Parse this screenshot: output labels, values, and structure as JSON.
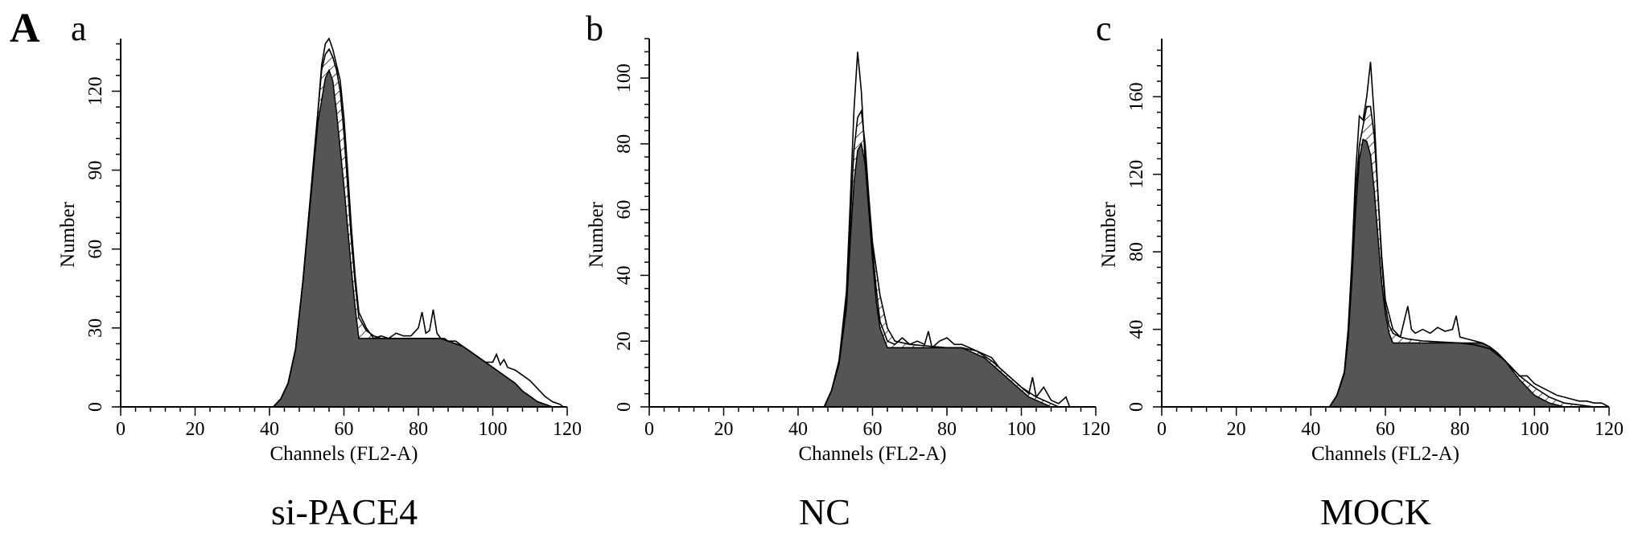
{
  "figure_label": "A",
  "chart_data": [
    {
      "type": "area",
      "panel_letter": "a",
      "caption": "si-PACE4",
      "xlabel": "Channels (FL2-A)",
      "ylabel": "Number",
      "xlim": [
        0,
        120
      ],
      "ylim": [
        0,
        140
      ],
      "xticks": [
        "0",
        "20",
        "40",
        "60",
        "80",
        "100",
        "120"
      ],
      "yticks": [
        0,
        30,
        60,
        90,
        120
      ],
      "ytick_labels": [
        "0",
        "30",
        "60",
        "90",
        "120"
      ],
      "series": [
        {
          "x": [
            41,
            43,
            45,
            47,
            49,
            51,
            53,
            54,
            55,
            56,
            57,
            58,
            59,
            60,
            61,
            62,
            63,
            64,
            66,
            68,
            70,
            72,
            74,
            76,
            78,
            80,
            81,
            82,
            83,
            84,
            85,
            86,
            87,
            88,
            90,
            92,
            94,
            96,
            98,
            100,
            101,
            102,
            103,
            104,
            106,
            108,
            110,
            112,
            114,
            116,
            118,
            119
          ],
          "values": [
            0,
            3,
            9,
            22,
            48,
            80,
            112,
            130,
            138,
            140,
            136,
            130,
            124,
            110,
            90,
            68,
            50,
            36,
            30,
            26,
            27,
            26,
            28,
            27,
            27,
            30,
            36,
            28,
            29,
            37,
            28,
            26,
            26,
            25,
            25,
            23,
            21,
            19,
            17,
            17,
            20,
            16,
            18,
            15,
            14,
            12,
            10,
            7,
            4,
            2,
            1,
            0
          ]
        },
        {
          "x": [
            41,
            43,
            45,
            47,
            49,
            51,
            53,
            54,
            55,
            56,
            57,
            58,
            59,
            60,
            61,
            62,
            63,
            64,
            66,
            68,
            70,
            72,
            74,
            76,
            78,
            80,
            82,
            84,
            86,
            88,
            90,
            92,
            94,
            96,
            98,
            100,
            102,
            104,
            106,
            108,
            110,
            112,
            114,
            116,
            118
          ],
          "values": [
            0,
            3,
            9,
            22,
            48,
            80,
            112,
            128,
            134,
            136,
            133,
            128,
            120,
            104,
            84,
            63,
            47,
            34,
            29,
            27,
            26,
            26,
            26,
            26,
            26,
            26,
            26,
            26,
            26,
            25,
            24,
            23,
            21,
            19,
            17,
            15,
            13,
            11,
            9,
            6,
            4,
            2,
            1,
            0,
            0
          ]
        },
        {
          "x": [
            41,
            43,
            45,
            47,
            49,
            51,
            53,
            55,
            56,
            57,
            58,
            60,
            62,
            63,
            64,
            86,
            88,
            90,
            92,
            94,
            96,
            98,
            100,
            102,
            104,
            106,
            108,
            110,
            112,
            114,
            116,
            118
          ],
          "values": [
            0,
            3,
            9,
            22,
            48,
            78,
            108,
            125,
            128,
            124,
            112,
            84,
            52,
            38,
            26,
            26,
            25,
            24,
            23,
            21,
            19,
            17,
            15,
            13,
            11,
            9,
            6,
            4,
            2,
            1,
            0,
            0
          ]
        }
      ]
    },
    {
      "type": "area",
      "panel_letter": "b",
      "caption": "NC",
      "xlabel": "Channels (FL2-A)",
      "ylabel": "Number",
      "xlim": [
        0,
        120
      ],
      "ylim": [
        0,
        112
      ],
      "xticks": [
        "0",
        "20",
        "40",
        "60",
        "80",
        "100",
        "120"
      ],
      "yticks": [
        0,
        20,
        40,
        60,
        80,
        100
      ],
      "ytick_labels": [
        "0",
        "20",
        "40",
        "60",
        "80",
        "100"
      ],
      "series": [
        {
          "x": [
            47,
            49,
            51,
            53,
            54,
            55,
            56,
            57,
            58,
            59,
            60,
            61,
            62,
            64,
            66,
            68,
            70,
            72,
            74,
            75,
            76,
            78,
            80,
            82,
            84,
            86,
            88,
            90,
            92,
            94,
            96,
            98,
            100,
            102,
            103,
            104,
            106,
            108,
            110,
            112,
            113
          ],
          "values": [
            0,
            5,
            14,
            35,
            62,
            90,
            108,
            96,
            75,
            60,
            48,
            36,
            26,
            20,
            19,
            21,
            19,
            20,
            19,
            23,
            18,
            20,
            21,
            19,
            19,
            18,
            17,
            16,
            15,
            12,
            10,
            8,
            6,
            4,
            9,
            3,
            6,
            2,
            1,
            3,
            0
          ]
        },
        {
          "x": [
            47,
            49,
            51,
            53,
            54,
            55,
            56,
            57,
            58,
            59,
            60,
            62,
            64,
            66,
            70,
            80,
            84,
            88,
            92,
            96,
            100,
            104,
            108,
            110
          ],
          "values": [
            0,
            5,
            14,
            32,
            56,
            78,
            88,
            90,
            80,
            64,
            50,
            34,
            24,
            20,
            19,
            18,
            18,
            17,
            14,
            10,
            6,
            3,
            1,
            0
          ]
        },
        {
          "x": [
            47,
            49,
            51,
            53,
            54,
            55,
            56,
            57,
            58,
            59,
            60,
            61,
            62,
            64,
            84,
            86,
            88,
            90,
            92,
            94,
            96,
            98,
            100,
            102,
            104,
            106,
            108
          ],
          "values": [
            0,
            5,
            13,
            30,
            50,
            68,
            78,
            80,
            74,
            60,
            45,
            32,
            24,
            18,
            18,
            17,
            16,
            15,
            13,
            11,
            9,
            7,
            5,
            3,
            2,
            1,
            0
          ]
        }
      ]
    },
    {
      "type": "area",
      "panel_letter": "c",
      "caption": "MOCK",
      "xlabel": "Channels (FL2-A)",
      "ylabel": "Number",
      "xlim": [
        0,
        120
      ],
      "ylim": [
        0,
        190
      ],
      "xticks": [
        "0",
        "20",
        "40",
        "60",
        "80",
        "100",
        "120"
      ],
      "yticks": [
        0,
        40,
        80,
        120,
        160
      ],
      "ytick_labels": [
        "0",
        "40",
        "80",
        "120",
        "160"
      ],
      "series": [
        {
          "x": [
            45,
            47,
            49,
            50,
            51,
            52,
            53,
            54,
            55,
            56,
            57,
            58,
            59,
            60,
            61,
            62,
            64,
            66,
            67,
            68,
            70,
            72,
            74,
            76,
            78,
            79,
            80,
            82,
            84,
            86,
            88,
            90,
            92,
            94,
            96,
            98,
            100,
            102,
            104,
            106,
            108,
            110,
            112,
            114,
            116,
            118,
            120
          ],
          "values": [
            0,
            6,
            18,
            40,
            75,
            120,
            150,
            148,
            160,
            178,
            150,
            110,
            75,
            52,
            42,
            38,
            36,
            52,
            40,
            38,
            40,
            38,
            41,
            39,
            40,
            47,
            36,
            35,
            34,
            33,
            31,
            28,
            24,
            20,
            16,
            16,
            12,
            10,
            8,
            6,
            5,
            4,
            3,
            3,
            2,
            2,
            0
          ]
        },
        {
          "x": [
            45,
            47,
            49,
            50,
            51,
            52,
            53,
            54,
            55,
            56,
            57,
            58,
            59,
            60,
            62,
            64,
            66,
            70,
            80,
            84,
            88,
            92,
            96,
            100,
            104,
            108,
            112,
            116,
            120
          ],
          "values": [
            0,
            6,
            18,
            38,
            70,
            110,
            135,
            145,
            155,
            155,
            140,
            110,
            78,
            55,
            40,
            36,
            35,
            34,
            33,
            32,
            30,
            24,
            16,
            10,
            5,
            2,
            1,
            0,
            0
          ]
        },
        {
          "x": [
            45,
            47,
            49,
            50,
            51,
            52,
            53,
            54,
            55,
            56,
            57,
            58,
            59,
            60,
            61,
            62,
            86,
            88,
            90,
            92,
            94,
            96,
            98,
            100,
            102,
            104,
            106,
            108
          ],
          "values": [
            0,
            6,
            17,
            35,
            65,
            100,
            128,
            138,
            137,
            130,
            112,
            88,
            64,
            48,
            38,
            33,
            33,
            31,
            28,
            24,
            19,
            14,
            10,
            6,
            4,
            2,
            1,
            0
          ]
        }
      ]
    }
  ]
}
